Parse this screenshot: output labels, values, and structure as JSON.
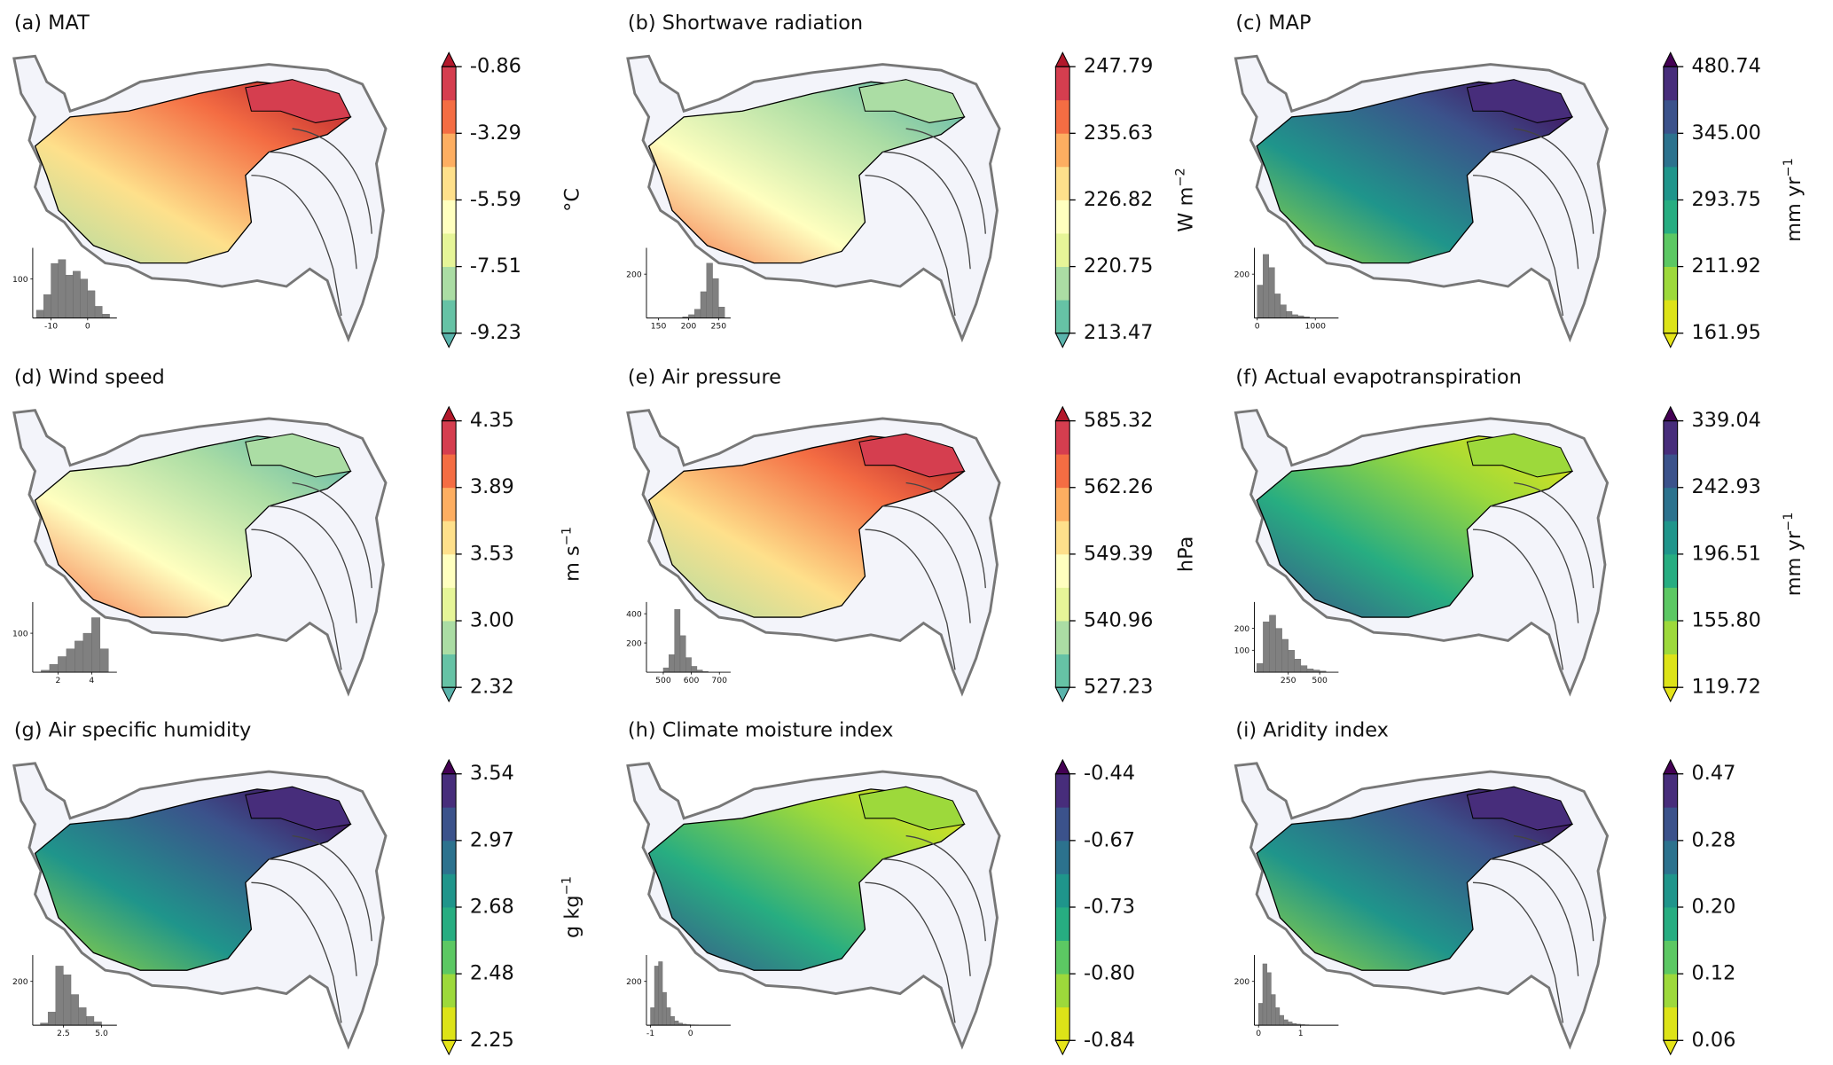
{
  "panels": [
    {
      "title": "(a) MAT",
      "unit": {
        "text": "°C"
      },
      "palette": "spectral",
      "ticks": [
        -0.86,
        -3.29,
        -5.59,
        -7.51,
        -9.23
      ],
      "hist": {
        "xlim": [
          -15,
          8
        ],
        "xticks": [
          -10,
          0
        ],
        "ylim": [
          0,
          180
        ],
        "yticks": [
          100
        ],
        "bins": [
          -14,
          -12,
          -10,
          -8,
          -6,
          -4,
          -2,
          0,
          2,
          4,
          6
        ],
        "counts": [
          20,
          60,
          140,
          150,
          110,
          120,
          100,
          70,
          30,
          10
        ]
      }
    },
    {
      "title": "(b) Shortwave radiation",
      "unit": {
        "text": "W m",
        "sup": "−2"
      },
      "palette": "spectral",
      "ticks": [
        247.79,
        235.63,
        226.82,
        220.75,
        213.47
      ],
      "hist": {
        "xlim": [
          130,
          270
        ],
        "xticks": [
          150,
          200,
          250
        ],
        "ylim": [
          0,
          320
        ],
        "yticks": [
          200
        ],
        "bins": [
          190,
          200,
          210,
          220,
          230,
          240,
          250,
          260
        ],
        "counts": [
          5,
          15,
          40,
          120,
          250,
          180,
          50
        ]
      }
    },
    {
      "title": "(c) MAP",
      "unit": {
        "text": "mm yr",
        "sup": "−1"
      },
      "palette": "viridis",
      "ticks": [
        480.74,
        {
          "value": 345,
          "label": "345.00"
        },
        293.75,
        211.92,
        161.95
      ],
      "hist": {
        "xlim": [
          -50,
          1400
        ],
        "xticks": [
          0,
          1000
        ],
        "ylim": [
          0,
          320
        ],
        "yticks": [
          200
        ],
        "bins": [
          0,
          100,
          200,
          300,
          400,
          500,
          600,
          700,
          800,
          900
        ],
        "counts": [
          150,
          290,
          230,
          110,
          60,
          30,
          15,
          10,
          5
        ]
      }
    },
    {
      "title": "(d) Wind speed",
      "unit": {
        "text": "m s",
        "sup": "−1"
      },
      "palette": "spectral",
      "ticks": [
        4.35,
        3.89,
        3.53,
        {
          "value": 3,
          "label": "3.00"
        },
        2.32
      ],
      "hist": {
        "xlim": [
          0.5,
          5.5
        ],
        "xticks": [
          2,
          4
        ],
        "ylim": [
          0,
          180
        ],
        "yticks": [
          100
        ],
        "bins": [
          1,
          1.5,
          2,
          2.5,
          3,
          3.5,
          4,
          4.5,
          5
        ],
        "counts": [
          5,
          20,
          40,
          60,
          80,
          100,
          140,
          60
        ]
      }
    },
    {
      "title": "(e) Air pressure",
      "unit": {
        "text": "hPa"
      },
      "palette": "spectral",
      "ticks": [
        585.32,
        562.26,
        549.39,
        540.96,
        527.23
      ],
      "hist": {
        "xlim": [
          440,
          740
        ],
        "xticks": [
          500,
          600,
          700
        ],
        "ylim": [
          0,
          480
        ],
        "yticks": [
          200,
          400
        ],
        "bins": [
          500,
          520,
          540,
          560,
          580,
          600,
          620,
          640,
          660
        ],
        "counts": [
          30,
          120,
          430,
          250,
          100,
          40,
          15,
          5
        ]
      }
    },
    {
      "title": "(f) Actual evapotranspiration",
      "unit": {
        "text": "mm yr",
        "sup": "−1"
      },
      "palette": "viridis",
      "ticks": [
        339.04,
        242.93,
        196.51,
        {
          "value": 155.8,
          "label": "155.80"
        },
        119.72
      ],
      "hist": {
        "xlim": [
          -20,
          650
        ],
        "xticks": [
          250,
          500
        ],
        "ylim": [
          0,
          320
        ],
        "yticks": [
          100,
          200
        ],
        "bins": [
          0,
          50,
          100,
          150,
          200,
          250,
          300,
          350,
          400,
          450,
          500,
          550
        ],
        "counts": [
          40,
          230,
          260,
          200,
          150,
          100,
          60,
          30,
          15,
          10,
          5
        ]
      }
    },
    {
      "title": "(g) Air specific humidity",
      "unit": {
        "text": "g kg",
        "sup": "−1"
      },
      "palette": "viridis",
      "ticks": [
        3.54,
        2.97,
        2.68,
        2.48,
        2.25
      ],
      "hist": {
        "xlim": [
          0.5,
          6
        ],
        "xticks": [
          2.5,
          {
            "value": 5,
            "label": "5.0"
          }
        ],
        "ylim": [
          0,
          320
        ],
        "yticks": [
          200
        ],
        "bins": [
          1,
          1.5,
          2,
          2.5,
          3,
          3.5,
          4,
          4.5,
          5
        ],
        "counts": [
          10,
          60,
          270,
          230,
          140,
          80,
          40,
          15
        ]
      }
    },
    {
      "title": "(h) Climate moisture index",
      "palette": "viridis",
      "ticks": [
        -0.44,
        -0.67,
        -0.73,
        {
          "value": -0.8,
          "label": "-0.80"
        },
        -0.84
      ],
      "hist": {
        "xlim": [
          -1.1,
          1
        ],
        "xticks": [
          -1,
          0
        ],
        "ylim": [
          0,
          320
        ],
        "yticks": [
          200
        ],
        "bins": [
          -1,
          -0.9,
          -0.8,
          -0.7,
          -0.6,
          -0.5,
          -0.4,
          -0.3,
          -0.2,
          -0.1,
          0,
          0.1,
          0.2
        ],
        "counts": [
          80,
          270,
          290,
          150,
          80,
          40,
          20,
          10,
          5,
          3,
          2,
          1
        ]
      }
    },
    {
      "title": "(i) Aridity index",
      "palette": "viridis",
      "ticks": [
        0.47,
        0.28,
        {
          "value": 0.2,
          "label": "0.20"
        },
        0.12,
        0.06
      ],
      "hist": {
        "xlim": [
          -0.1,
          1.9
        ],
        "xticks": [
          0,
          1
        ],
        "ylim": [
          0,
          320
        ],
        "yticks": [
          200
        ],
        "bins": [
          0,
          0.1,
          0.2,
          0.3,
          0.4,
          0.5,
          0.6,
          0.7,
          0.8,
          0.9,
          1,
          1.1,
          1.2
        ],
        "counts": [
          100,
          280,
          240,
          140,
          80,
          45,
          25,
          15,
          8,
          5,
          3,
          2
        ]
      }
    }
  ],
  "palettes": {
    "spectral": [
      "#5ab4ac",
      "#66c2a5",
      "#abdda4",
      "#e6f598",
      "#ffffbf",
      "#fee08b",
      "#fdae61",
      "#f46d43",
      "#d53e4f",
      "#b2182b"
    ],
    "viridis": [
      "#e5e419",
      "#dde318",
      "#9dd93b",
      "#5cc863",
      "#27ad81",
      "#1f958b",
      "#2c728e",
      "#3b528b",
      "#472d7b",
      "#440154"
    ]
  }
}
